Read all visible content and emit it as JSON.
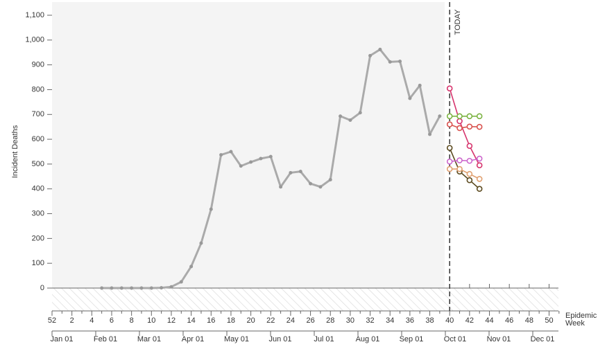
{
  "chart_data": {
    "type": "line",
    "y_label": "Incident Deaths",
    "x_label": [
      "Epidemic",
      "Week"
    ],
    "annotation": "TODAY",
    "today_index": 40,
    "observed_until_index": 39,
    "categories": [
      52,
      null,
      2,
      null,
      4,
      null,
      6,
      null,
      8,
      null,
      10,
      null,
      12,
      null,
      14,
      null,
      16,
      null,
      18,
      null,
      20,
      null,
      22,
      null,
      24,
      null,
      26,
      null,
      28,
      null,
      30,
      null,
      32,
      null,
      34,
      null,
      36,
      null,
      38,
      null,
      40,
      null,
      42,
      null,
      44,
      null,
      46,
      null,
      48,
      null,
      50,
      null
    ],
    "date_labels": [
      "Jan 01",
      "Feb 01",
      "Mar 01",
      "Apr 01",
      "May 01",
      "Jun 01",
      "Jul 01",
      "Aug 01",
      "Sep 01",
      "Oct 01",
      "Nov 01",
      "Dec 01"
    ],
    "ylim": [
      0,
      1100
    ],
    "yticks": [
      0,
      100,
      200,
      300,
      400,
      500,
      600,
      700,
      800,
      900,
      {
        "value": 1000,
        "label": "1,000"
      },
      {
        "value": 1100,
        "label": "1,100"
      }
    ],
    "series": [
      {
        "color": "#aaaaaa",
        "marker": "dot",
        "values": [
          null,
          null,
          null,
          null,
          null,
          0,
          0,
          0,
          0,
          0,
          0,
          1,
          5,
          25,
          87,
          181,
          318,
          537,
          550,
          492,
          508,
          522,
          530,
          408,
          465,
          470,
          421,
          408,
          437,
          693,
          677,
          707,
          937,
          962,
          912,
          914,
          765,
          817,
          620,
          693,
          null,
          null,
          null,
          null,
          null,
          null,
          null,
          null,
          null,
          null,
          null,
          null
        ]
      },
      {
        "color": "#d6336c",
        "marker": "open",
        "values": [
          null,
          null,
          null,
          null,
          null,
          null,
          null,
          null,
          null,
          null,
          null,
          null,
          null,
          null,
          null,
          null,
          null,
          null,
          null,
          null,
          null,
          null,
          null,
          null,
          null,
          null,
          null,
          null,
          null,
          null,
          null,
          null,
          null,
          null,
          null,
          null,
          null,
          null,
          null,
          null,
          805,
          673,
          573,
          495,
          null,
          null,
          null,
          null,
          null,
          null,
          null,
          null
        ]
      },
      {
        "color": "#7cb342",
        "marker": "open",
        "values": [
          null,
          null,
          null,
          null,
          null,
          null,
          null,
          null,
          null,
          null,
          null,
          null,
          null,
          null,
          null,
          null,
          null,
          null,
          null,
          null,
          null,
          null,
          null,
          null,
          null,
          null,
          null,
          null,
          null,
          null,
          null,
          null,
          null,
          null,
          null,
          null,
          null,
          null,
          null,
          null,
          693,
          693,
          693,
          693,
          null,
          null,
          null,
          null,
          null,
          null,
          null,
          null
        ]
      },
      {
        "color": "#d9534f",
        "marker": "open",
        "values": [
          null,
          null,
          null,
          null,
          null,
          null,
          null,
          null,
          null,
          null,
          null,
          null,
          null,
          null,
          null,
          null,
          null,
          null,
          null,
          null,
          null,
          null,
          null,
          null,
          null,
          null,
          null,
          null,
          null,
          null,
          null,
          null,
          null,
          null,
          null,
          null,
          null,
          null,
          null,
          null,
          660,
          645,
          651,
          650,
          null,
          null,
          null,
          null,
          null,
          null,
          null,
          null
        ]
      },
      {
        "color": "#5c4a1f",
        "marker": "open",
        "values": [
          null,
          null,
          null,
          null,
          null,
          null,
          null,
          null,
          null,
          null,
          null,
          null,
          null,
          null,
          null,
          null,
          null,
          null,
          null,
          null,
          null,
          null,
          null,
          null,
          null,
          null,
          null,
          null,
          null,
          null,
          null,
          null,
          null,
          null,
          null,
          null,
          null,
          null,
          null,
          null,
          565,
          470,
          435,
          400,
          null,
          null,
          null,
          null,
          null,
          null,
          null,
          null
        ]
      },
      {
        "color": "#cc66cc",
        "marker": "open",
        "values": [
          null,
          null,
          null,
          null,
          null,
          null,
          null,
          null,
          null,
          null,
          null,
          null,
          null,
          null,
          null,
          null,
          null,
          null,
          null,
          null,
          null,
          null,
          null,
          null,
          null,
          null,
          null,
          null,
          null,
          null,
          null,
          null,
          null,
          null,
          null,
          null,
          null,
          null,
          null,
          null,
          510,
          515,
          513,
          522,
          null,
          null,
          null,
          null,
          null,
          null,
          null,
          null
        ]
      },
      {
        "color": "#e0a070",
        "marker": "open",
        "values": [
          null,
          null,
          null,
          null,
          null,
          null,
          null,
          null,
          null,
          null,
          null,
          null,
          null,
          null,
          null,
          null,
          null,
          null,
          null,
          null,
          null,
          null,
          null,
          null,
          null,
          null,
          null,
          null,
          null,
          null,
          null,
          null,
          null,
          null,
          null,
          null,
          null,
          null,
          null,
          null,
          480,
          480,
          460,
          440,
          null,
          null,
          null,
          null,
          null,
          null,
          null,
          null
        ]
      }
    ]
  }
}
